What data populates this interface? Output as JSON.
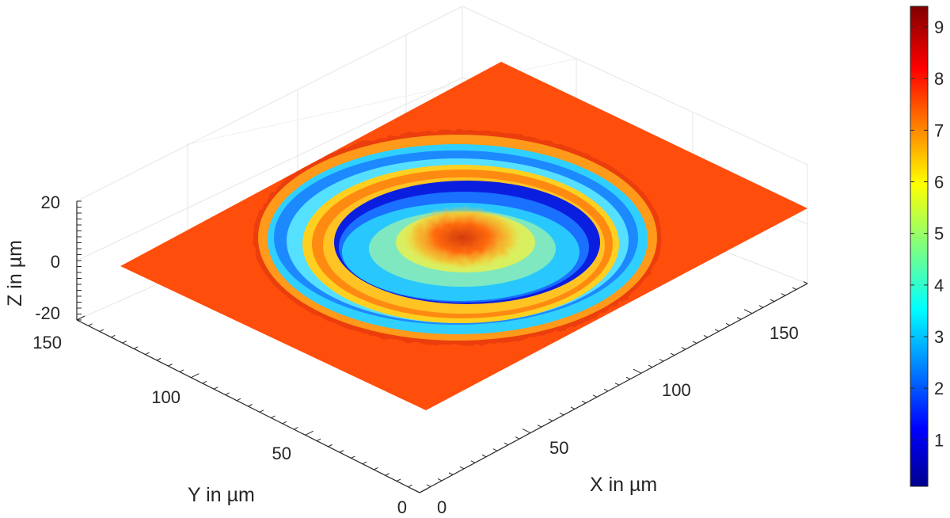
{
  "chart_data": {
    "type": "surface",
    "xlabel": "X in µm",
    "ylabel": "Y in µm",
    "zlabel": "Z in µm",
    "x_ticks": [
      "0",
      "50",
      "100",
      "150"
    ],
    "y_ticks": [
      "0",
      "50",
      "100",
      "150"
    ],
    "z_ticks": [
      "20",
      "0",
      "-20"
    ],
    "xlim": [
      0,
      175
    ],
    "ylim": [
      0,
      150
    ],
    "zlim": [
      -20,
      20
    ],
    "colormap": "jet",
    "colorbar": {
      "ticks": [
        "1",
        "2",
        "3",
        "4",
        "5",
        "6",
        "7",
        "8",
        "9"
      ],
      "range": [
        0.1,
        9.4
      ]
    },
    "grid": true,
    "surface_description": {
      "base_level": 7.6,
      "outer_rim_level": 4.0,
      "inner_ridge_level": 7.0,
      "inner_trough_level": 2.0,
      "center_mound_level": 8.0
    }
  }
}
